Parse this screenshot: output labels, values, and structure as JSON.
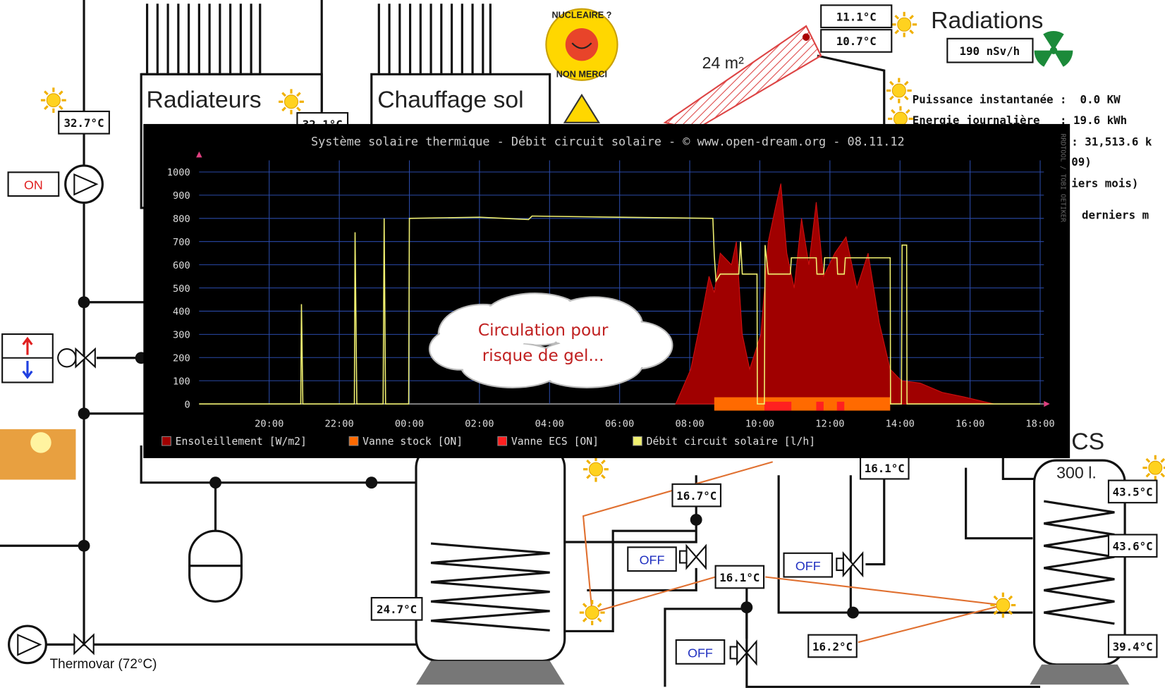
{
  "schematic": {
    "radiateurs": "Radiateurs",
    "chauffage_sol": "Chauffage sol",
    "thermovar": "Thermovar (72°C)",
    "collector_area": "24 m²",
    "radiations_title": "Radiations",
    "radiation_value": "190 nSv/h",
    "sticker_top": "NUCLEAIRE ?",
    "sticker_bottom": "NON MERCI",
    "ecs": "CS",
    "tank_volume": "300 l.",
    "temperatures": [
      "32.7°C",
      "32.1°C",
      "11.1°C",
      "10.7°C",
      "24.7°C",
      "16.7°C",
      "16.1°C",
      "16.2°C",
      "16.1°C",
      "43.5°C",
      "43.6°C",
      "39.4°C"
    ],
    "switches": [
      "ON",
      "OFF",
      "OFF",
      "OFF"
    ],
    "info_lines": [
      "Puissance instantanée :  0.0 KW",
      "Energie journalière   : 19.6 kWh",
      ": 31,513.6 k",
      "09)",
      "iers mois)",
      "derniers m"
    ]
  },
  "chart_data": {
    "type": "line",
    "title": "Système solaire thermique - Débit circuit solaire - © www.open-dream.org - 08.11.12",
    "watermark": "RRDTOOL / TOBI OETIKER",
    "annotation": [
      "Circulation pour",
      "risque de gel..."
    ],
    "xlim": [
      18,
      42
    ],
    "xticks": [
      {
        "value": 20,
        "label": "20:00"
      },
      {
        "value": 22,
        "label": "22:00"
      },
      {
        "value": 24,
        "label": "00:00"
      },
      {
        "value": 26,
        "label": "02:00"
      },
      {
        "value": 28,
        "label": "04:00"
      },
      {
        "value": 30,
        "label": "06:00"
      },
      {
        "value": 32,
        "label": "08:00"
      },
      {
        "value": 34,
        "label": "10:00"
      },
      {
        "value": 36,
        "label": "12:00"
      },
      {
        "value": 38,
        "label": "14:00"
      },
      {
        "value": 40,
        "label": "16:00"
      },
      {
        "value": 42,
        "label": "18:00"
      }
    ],
    "ylim": [
      0,
      1050
    ],
    "yticks": [
      0,
      100,
      200,
      300,
      400,
      500,
      600,
      700,
      800,
      900,
      1000
    ],
    "grid": true,
    "series": [
      {
        "name": "Ensoleillement [W/m2]",
        "type": "area",
        "color": "#a00000",
        "x": [
          31.6,
          32.03,
          32.34,
          32.55,
          32.7,
          32.87,
          33.19,
          33.33,
          33.5,
          33.71,
          34.03,
          34.24,
          34.45,
          34.6,
          34.77,
          34.98,
          35.19,
          35.4,
          35.61,
          35.82,
          36.14,
          36.46,
          36.77,
          37.09,
          37.41,
          37.72,
          38.04,
          38.57,
          39.2,
          39.83,
          40.68
        ],
        "values": [
          0,
          150,
          380,
          550,
          480,
          650,
          600,
          700,
          300,
          150,
          300,
          700,
          850,
          950,
          650,
          500,
          800,
          600,
          870,
          550,
          650,
          720,
          500,
          650,
          350,
          150,
          100,
          90,
          50,
          30,
          0
        ]
      },
      {
        "name": "Vanne stock [ON]",
        "type": "band",
        "color": "#ff6a00",
        "ranges": [
          [
            32.7,
            37.72
          ]
        ]
      },
      {
        "name": "Vanne ECS [ON]",
        "type": "band",
        "color": "#ff2020",
        "ranges": [
          [
            34.13,
            34.9
          ],
          [
            35.61,
            35.82
          ],
          [
            36.2,
            36.41
          ]
        ]
      },
      {
        "name": "Débit circuit solaire [l/h]",
        "type": "line",
        "color": "#f0f070",
        "x": [
          18,
          20.9,
          20.92,
          20.96,
          22.43,
          22.45,
          22.5,
          23.25,
          23.28,
          23.32,
          23.98,
          24,
          26,
          27.4,
          27.5,
          30,
          32.66,
          32.7,
          32.75,
          32.87,
          33.4,
          33.45,
          33.5,
          33.92,
          33.93,
          34.13,
          34.15,
          34.24,
          34.87,
          34.9,
          35.61,
          35.63,
          35.82,
          35.85,
          36.2,
          36.22,
          36.41,
          36.44,
          37.72,
          37.73,
          38.04,
          38.06,
          38.19,
          38.2,
          42
        ],
        "values": [
          0,
          0,
          430,
          0,
          0,
          740,
          0,
          0,
          800,
          0,
          0,
          800,
          805,
          795,
          810,
          805,
          800,
          640,
          530,
          560,
          560,
          700,
          560,
          560,
          0,
          0,
          685,
          560,
          560,
          630,
          630,
          560,
          560,
          630,
          630,
          560,
          560,
          630,
          630,
          0,
          0,
          685,
          685,
          0,
          0
        ]
      }
    ]
  }
}
